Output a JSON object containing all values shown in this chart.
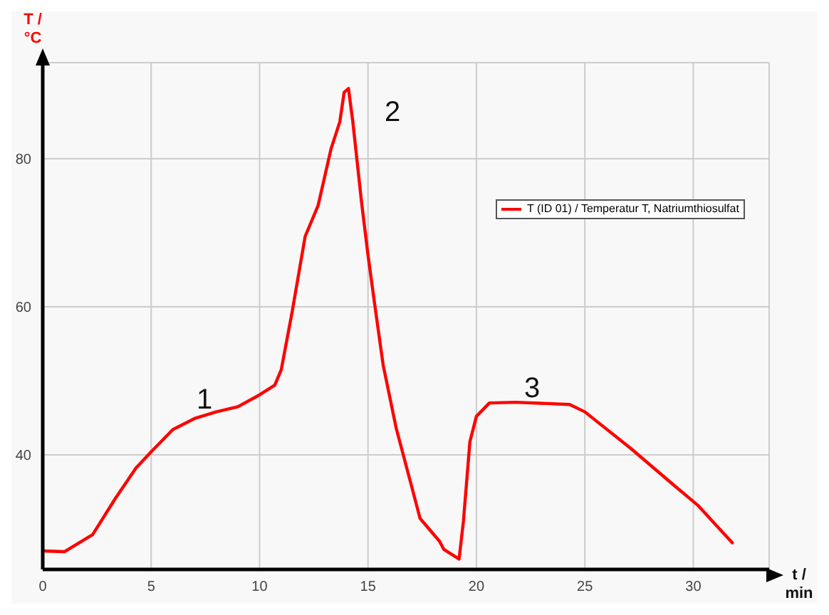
{
  "chart_data": {
    "type": "line",
    "xlabel": "t / min",
    "ylabel": "T / °C",
    "xlim": [
      0,
      33.5
    ],
    "xticks": [
      0,
      5,
      10,
      15,
      20,
      25,
      30
    ],
    "ylim": [
      24.5,
      93
    ],
    "yticks": [
      40,
      60,
      80
    ],
    "grid": true,
    "legend": "top right",
    "marker": "none",
    "line_style": "solid",
    "annotations": [
      "1",
      "2",
      "3"
    ],
    "series": [
      {
        "name": "T (ID 01) / Temperatur T, Natriumthiosulfat",
        "color": "#ff0000",
        "x": [
          0,
          1,
          2.3,
          3.35,
          4.3,
          5,
          6,
          7,
          8,
          9,
          10,
          10.7,
          11,
          11.5,
          12.1,
          12.7,
          13.3,
          13.7,
          13.9,
          14.1,
          14.3,
          14.7,
          15,
          15.3,
          15.7,
          16.3,
          16.95,
          17.4,
          18.3,
          18.5,
          19.2,
          19.4,
          19.7,
          20,
          20.6,
          21.8,
          24.3,
          25,
          27.1,
          29.1,
          30.2,
          31.8
        ],
        "values": [
          27.0,
          26.9,
          29.2,
          34.1,
          38.2,
          40.4,
          43.4,
          44.9,
          45.8,
          46.5,
          48.1,
          49.4,
          51.5,
          59.3,
          69.5,
          73.7,
          81.4,
          85.0,
          89.0,
          89.5,
          85.0,
          74.2,
          67.0,
          60.5,
          52.1,
          43.6,
          36.4,
          31.4,
          28.3,
          27.2,
          25.9,
          31.0,
          41.8,
          45.2,
          47.0,
          47.1,
          46.8,
          45.8,
          40.9,
          35.9,
          33.2,
          28.1
        ]
      }
    ]
  }
}
